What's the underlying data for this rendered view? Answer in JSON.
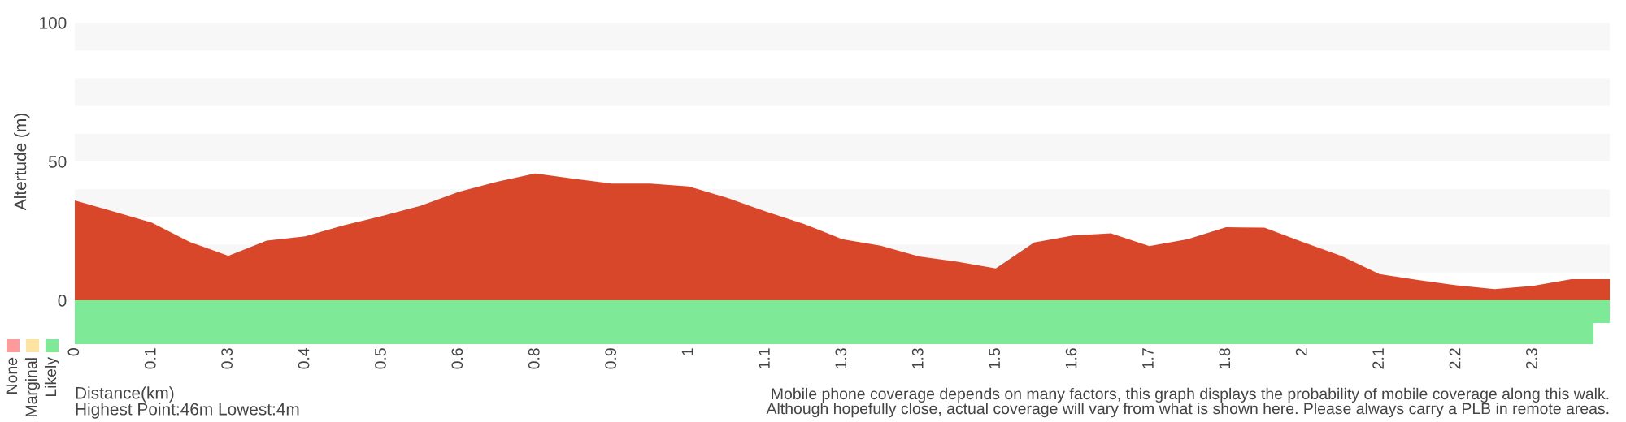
{
  "chart_data": {
    "type": "area",
    "ylabel": "Altertude (m)",
    "xlabel": "Distance(km)",
    "color": "#d9472b",
    "ylim": [
      0,
      100
    ],
    "yticks": [
      0,
      50,
      100
    ],
    "categories": [
      "0",
      null,
      "0.1",
      null,
      "0.3",
      null,
      "0.4",
      null,
      "0.5",
      null,
      "0.6",
      null,
      "0.8",
      null,
      "0.9",
      null,
      "1",
      null,
      "1.1",
      null,
      "1.3",
      null,
      "1.3",
      null,
      "1.5",
      null,
      "1.6",
      null,
      "1.7",
      null,
      "1.8",
      null,
      "2",
      null,
      "2.1",
      null,
      "2.2",
      null,
      "2.3",
      null,
      null
    ],
    "bands": [
      {
        "axis": "y",
        "from": 10,
        "to": 20,
        "color": "#f7f7f7"
      },
      {
        "axis": "y",
        "from": 30,
        "to": 40,
        "color": "#f7f7f7"
      },
      {
        "axis": "y",
        "from": 50,
        "to": 60,
        "color": "#f7f7f7"
      },
      {
        "axis": "y",
        "from": 70,
        "to": 80,
        "color": "#f7f7f7"
      },
      {
        "axis": "y",
        "from": 90,
        "to": 100,
        "color": "#f7f7f7"
      }
    ],
    "values": [
      36,
      32,
      28,
      21,
      16,
      21.5,
      23,
      27,
      30.3,
      34,
      39,
      42.7,
      45.7,
      43.8,
      42,
      42,
      41,
      36.9,
      32,
      27.5,
      22,
      19.7,
      15.8,
      13.9,
      11.5,
      20.8,
      23.3,
      24.1,
      19.5,
      22,
      26.3,
      26.2,
      21,
      16,
      9.4,
      7.3,
      5.4,
      4,
      5.2,
      7.6,
      7.6
    ],
    "annotations": [
      "None",
      "Marginal",
      "Likely",
      "Highest Point:46m Lowest:4m",
      "Mobile phone coverage depends on many factors, this graph displays the probability of mobile coverage along this walk.\nAlthough hopefully close, actual coverage will vary from what is shown here. Please always carry a PLB in remote areas."
    ]
  }
}
